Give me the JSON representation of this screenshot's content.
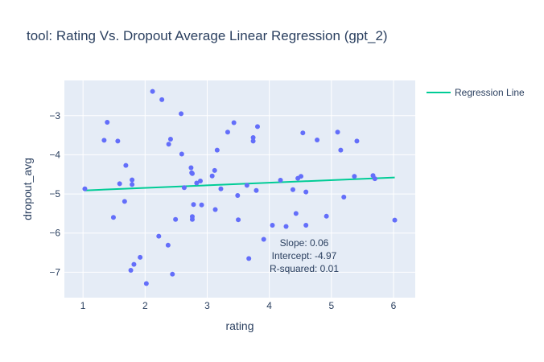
{
  "chart_data": {
    "type": "scatter",
    "title": "tool: Rating Vs. Dropout Average Linear Regression (gpt_2)",
    "xlabel": "rating",
    "ylabel": "dropout_avg",
    "xlim": [
      0.7,
      6.35
    ],
    "ylim": [
      -7.65,
      -2.1
    ],
    "x_ticks": [
      1,
      2,
      3,
      4,
      5,
      6
    ],
    "y_ticks": [
      -7,
      -6,
      -5,
      -4,
      -3
    ],
    "x_tick_labels": [
      "1",
      "2",
      "3",
      "4",
      "5",
      "6"
    ],
    "y_tick_labels": [
      "−7",
      "−6",
      "−5",
      "−4",
      "−3"
    ],
    "grid": true,
    "legend_position": "top-right",
    "series": [
      {
        "type": "markers",
        "color": "#636efa",
        "points": [
          [
            1.03,
            -4.87
          ],
          [
            1.34,
            -3.63
          ],
          [
            1.39,
            -3.17
          ],
          [
            1.49,
            -5.6
          ],
          [
            1.56,
            -3.65
          ],
          [
            1.59,
            -4.74
          ],
          [
            1.67,
            -5.19
          ],
          [
            1.69,
            -4.27
          ],
          [
            1.77,
            -6.95
          ],
          [
            1.79,
            -4.64
          ],
          [
            1.79,
            -4.76
          ],
          [
            1.82,
            -6.8
          ],
          [
            1.92,
            -6.62
          ],
          [
            2.02,
            -7.29
          ],
          [
            2.12,
            -2.38
          ],
          [
            2.22,
            -6.08
          ],
          [
            2.27,
            -2.59
          ],
          [
            2.37,
            -6.31
          ],
          [
            2.38,
            -3.73
          ],
          [
            2.41,
            -3.6
          ],
          [
            2.44,
            -7.05
          ],
          [
            2.49,
            -5.65
          ],
          [
            2.58,
            -2.95
          ],
          [
            2.59,
            -3.98
          ],
          [
            2.63,
            -4.84
          ],
          [
            2.74,
            -4.33
          ],
          [
            2.75,
            -4.46
          ],
          [
            2.76,
            -4.48
          ],
          [
            2.76,
            -5.58
          ],
          [
            2.76,
            -5.65
          ],
          [
            2.78,
            -5.27
          ],
          [
            2.83,
            -4.72
          ],
          [
            2.89,
            -4.67
          ],
          [
            2.91,
            -5.28
          ],
          [
            3.08,
            -4.54
          ],
          [
            3.12,
            -4.4
          ],
          [
            3.13,
            -5.4
          ],
          [
            3.16,
            -3.88
          ],
          [
            3.22,
            -4.87
          ],
          [
            3.33,
            -3.42
          ],
          [
            3.43,
            -3.18
          ],
          [
            3.49,
            -5.04
          ],
          [
            3.5,
            -5.66
          ],
          [
            3.64,
            -4.78
          ],
          [
            3.67,
            -6.65
          ],
          [
            3.74,
            -3.56
          ],
          [
            3.74,
            -3.65
          ],
          [
            3.79,
            -4.91
          ],
          [
            3.81,
            -3.28
          ],
          [
            3.91,
            -6.16
          ],
          [
            4.05,
            -5.8
          ],
          [
            4.18,
            -4.65
          ],
          [
            4.27,
            -5.83
          ],
          [
            4.38,
            -4.89
          ],
          [
            4.43,
            -5.5
          ],
          [
            4.46,
            -4.6
          ],
          [
            4.51,
            -4.55
          ],
          [
            4.54,
            -3.44
          ],
          [
            4.59,
            -4.95
          ],
          [
            4.59,
            -5.8
          ],
          [
            4.77,
            -3.62
          ],
          [
            4.92,
            -5.57
          ],
          [
            5.1,
            -3.42
          ],
          [
            5.15,
            -3.88
          ],
          [
            5.2,
            -5.08
          ],
          [
            5.37,
            -4.55
          ],
          [
            5.41,
            -3.65
          ],
          [
            5.67,
            -4.53
          ],
          [
            5.7,
            -4.61
          ],
          [
            6.02,
            -5.67
          ]
        ]
      },
      {
        "name": "Regression Line",
        "type": "line",
        "color": "#00cc96",
        "points": [
          [
            1.03,
            -4.91
          ],
          [
            6.02,
            -4.58
          ]
        ]
      }
    ],
    "annotation": [
      "Slope: 0.06",
      "Intercept: -4.97",
      "R-squared: 0.01"
    ]
  }
}
